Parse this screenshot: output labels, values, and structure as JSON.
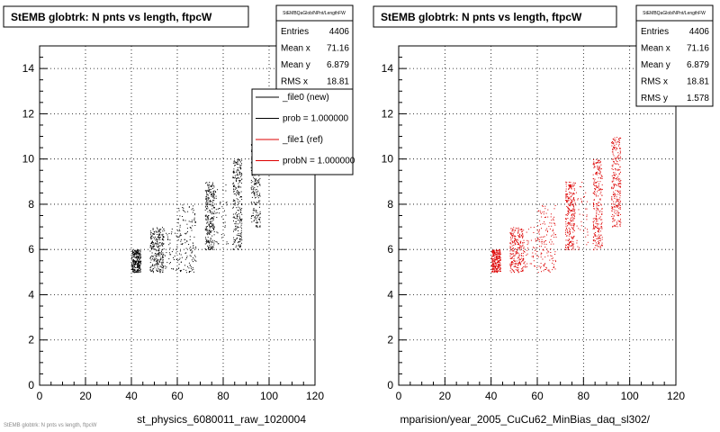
{
  "chart_data": [
    {
      "type": "scatter",
      "title": "StEMB globtrk: N pnts vs length, ftpcW",
      "xlabel": "st_physics_6080011_raw_1020004",
      "ylabel": "",
      "xlim": [
        0,
        120
      ],
      "ylim": [
        0,
        15
      ],
      "x_ticks": [
        "0",
        "20",
        "40",
        "60",
        "80",
        "100",
        "120"
      ],
      "y_ticks": [
        "0",
        "2",
        "4",
        "6",
        "8",
        "10",
        "12",
        "14"
      ],
      "grid": true,
      "color": "#000000",
      "stats": {
        "name": "StEMBQaGlob/NPnt/LengthFW",
        "rows": [
          {
            "label": "Entries",
            "value": "4406"
          },
          {
            "label": "Mean x",
            "value": "71.16"
          },
          {
            "label": "Mean y",
            "value": "6.879"
          },
          {
            "label": "RMS x",
            "value": "18.81"
          }
        ]
      },
      "legend": {
        "placement": "top-right",
        "entries": [
          {
            "label": "_file0 (new)",
            "color": "#000000"
          },
          {
            "label": "prob = 1.000000",
            "color": "#000000"
          },
          {
            "label": "_file1 (ref)",
            "color": "#dd0000"
          },
          {
            "label": "probN = 1.000000",
            "color": "#dd0000"
          }
        ]
      },
      "clusters": [
        {
          "x": [
            40,
            44
          ],
          "y": [
            5,
            6
          ],
          "density": "high"
        },
        {
          "x": [
            48,
            54
          ],
          "y": [
            5,
            7
          ],
          "density": "high"
        },
        {
          "x": [
            54,
            60
          ],
          "y": [
            5,
            7
          ],
          "density": "low"
        },
        {
          "x": [
            60,
            68
          ],
          "y": [
            5,
            8
          ],
          "density": "medium"
        },
        {
          "x": [
            72,
            76
          ],
          "y": [
            6,
            9
          ],
          "density": "high"
        },
        {
          "x": [
            76,
            82
          ],
          "y": [
            6,
            9
          ],
          "density": "low"
        },
        {
          "x": [
            84,
            88
          ],
          "y": [
            6,
            10
          ],
          "density": "high"
        },
        {
          "x": [
            92,
            96
          ],
          "y": [
            7,
            11
          ],
          "density": "high"
        }
      ]
    },
    {
      "type": "scatter",
      "title": "StEMB globtrk: N pnts vs length, ftpcW",
      "xlabel": "mparision/year_2005_CuCu62_MinBias_daq_sl302/",
      "ylabel": "",
      "xlim": [
        0,
        120
      ],
      "ylim": [
        0,
        15
      ],
      "x_ticks": [
        "0",
        "20",
        "40",
        "60",
        "80",
        "100",
        "120"
      ],
      "y_ticks": [
        "0",
        "2",
        "4",
        "6",
        "8",
        "10",
        "12",
        "14"
      ],
      "grid": true,
      "color": "#dd0000",
      "stats": {
        "name": "StEMBQaGlob/NPnt/LengthFW",
        "rows": [
          {
            "label": "Entries",
            "value": "4406"
          },
          {
            "label": "Mean x",
            "value": "71.16"
          },
          {
            "label": "Mean y",
            "value": "6.879"
          },
          {
            "label": "RMS x",
            "value": "18.81"
          },
          {
            "label": "RMS y",
            "value": "1.578"
          }
        ]
      },
      "clusters": [
        {
          "x": [
            40,
            44
          ],
          "y": [
            5,
            6
          ],
          "density": "high"
        },
        {
          "x": [
            48,
            54
          ],
          "y": [
            5,
            7
          ],
          "density": "high"
        },
        {
          "x": [
            54,
            60
          ],
          "y": [
            5,
            7
          ],
          "density": "low"
        },
        {
          "x": [
            60,
            68
          ],
          "y": [
            5,
            8
          ],
          "density": "medium"
        },
        {
          "x": [
            72,
            76
          ],
          "y": [
            6,
            9
          ],
          "density": "high"
        },
        {
          "x": [
            76,
            82
          ],
          "y": [
            6,
            9
          ],
          "density": "low"
        },
        {
          "x": [
            84,
            88
          ],
          "y": [
            6,
            10
          ],
          "density": "high"
        },
        {
          "x": [
            92,
            96
          ],
          "y": [
            7,
            11
          ],
          "density": "high"
        }
      ]
    }
  ],
  "footer_text": "StEMB globtrk: N pnts vs length, ftpcW"
}
